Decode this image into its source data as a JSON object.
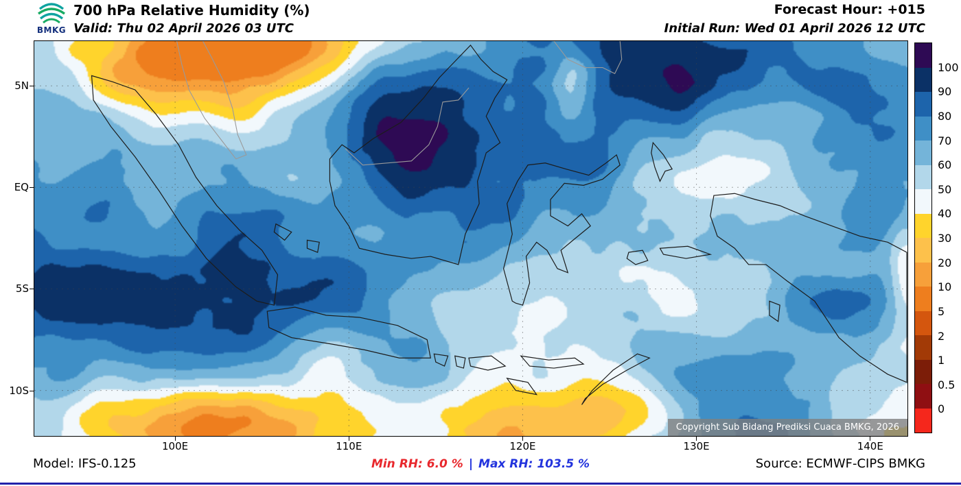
{
  "header": {
    "logo_text": "BMKG",
    "title": "700 hPa Relative Humidity (%)",
    "valid": "Valid: Thu 02 April 2026 03 UTC",
    "forecast_hour": "Forecast Hour: +015",
    "initial_run": "Initial Run: Wed 01 April 2026 12 UTC"
  },
  "map": {
    "copyright": "Copyright Sub Bidang Prediksi Cuaca BMKG, 2026",
    "lat_labels": [
      {
        "label": "5N",
        "lat": 5
      },
      {
        "label": "EQ",
        "lat": 0
      },
      {
        "label": "5S",
        "lat": -5
      },
      {
        "label": "10S",
        "lat": -10
      }
    ],
    "lon_labels": [
      {
        "label": "100E",
        "lon": 100
      },
      {
        "label": "110E",
        "lon": 110
      },
      {
        "label": "120E",
        "lon": 120
      },
      {
        "label": "130E",
        "lon": 130
      },
      {
        "label": "140E",
        "lon": 140
      }
    ]
  },
  "colorbar": {
    "tick_labels": [
      "100",
      "90",
      "80",
      "70",
      "60",
      "50",
      "40",
      "30",
      "20",
      "10",
      "5",
      "2",
      "1",
      "0.5",
      "0"
    ],
    "levels": [
      100,
      90,
      80,
      70,
      60,
      50,
      40,
      30,
      20,
      10,
      5,
      2,
      1,
      0.5,
      0
    ],
    "colors": [
      "#2e0a54",
      "#0b3166",
      "#1d64ab",
      "#3f8fc6",
      "#74b4d9",
      "#b2d7ea",
      "#f2f8fc",
      "#ffd42c",
      "#fdc14b",
      "#f7a03a",
      "#ee7e1e",
      "#d4560e",
      "#a23a06",
      "#7c1d08",
      "#8f0f12",
      "#f5271c"
    ]
  },
  "chart_data": {
    "type": "heatmap",
    "title": "700 hPa Relative Humidity (%)",
    "units": "%",
    "contour_levels": [
      0,
      0.5,
      1,
      2,
      5,
      10,
      20,
      30,
      40,
      50,
      60,
      70,
      80,
      90,
      100
    ],
    "min_rh": 6.0,
    "max_rh": 103.5
  },
  "footer": {
    "model": "Model: IFS-0.125",
    "min_rh": "Min RH:  6.0 %",
    "separator": "|",
    "max_rh": "Max RH: 103.5 %",
    "source": "Source: ECMWF-CIPS BMKG"
  }
}
